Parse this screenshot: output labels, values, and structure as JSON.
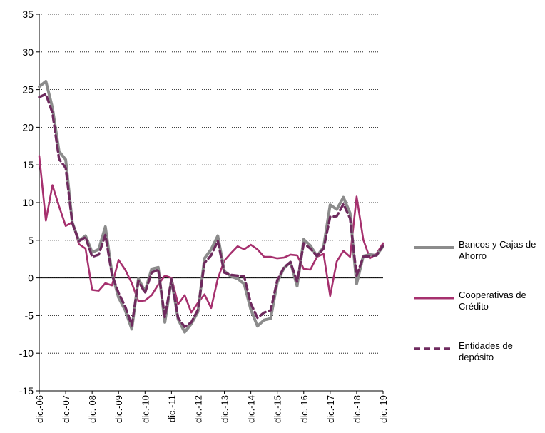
{
  "chart_data": {
    "type": "line",
    "title": "",
    "xlabel": "",
    "ylabel": "",
    "ylim": [
      -15,
      35
    ],
    "yticks": [
      -15,
      -10,
      -5,
      0,
      5,
      10,
      15,
      20,
      25,
      30,
      35
    ],
    "grid": "horizontal dotted",
    "legend_position": "right",
    "x_tick_labels": [
      "dic.-06",
      "dic.-07",
      "dic.-08",
      "dic.-09",
      "dic.-10",
      "dic.-11",
      "dic.-12",
      "dic.-13",
      "dic.-14",
      "dic.-15",
      "dic.-16",
      "dic.-17",
      "dic.-18",
      "dic.-19"
    ],
    "x": [
      "dic.-06",
      "mar.-07",
      "jun.-07",
      "sep.-07",
      "dic.-07",
      "mar.-08",
      "jun.-08",
      "sep.-08",
      "dic.-08",
      "mar.-09",
      "jun.-09",
      "sep.-09",
      "dic.-09",
      "mar.-10",
      "jun.-10",
      "sep.-10",
      "dic.-10",
      "mar.-11",
      "jun.-11",
      "sep.-11",
      "dic.-11",
      "mar.-12",
      "jun.-12",
      "sep.-12",
      "dic.-12",
      "mar.-13",
      "jun.-13",
      "sep.-13",
      "dic.-13",
      "mar.-14",
      "jun.-14",
      "sep.-14",
      "dic.-14",
      "mar.-15",
      "jun.-15",
      "sep.-15",
      "dic.-15",
      "mar.-16",
      "jun.-16",
      "sep.-16",
      "dic.-16",
      "mar.-17",
      "jun.-17",
      "sep.-17",
      "dic.-17",
      "mar.-18",
      "jun.-18",
      "sep.-18",
      "dic.-18",
      "mar.-19",
      "jun.-19",
      "sep.-19",
      "dic.-19"
    ],
    "series": [
      {
        "name": "Bancos y Cajas de Ahorro",
        "color": "#8c8c8c",
        "dash": "solid",
        "values": [
          25.4,
          26.1,
          22.6,
          16.8,
          15.7,
          7.4,
          4.9,
          5.6,
          3.4,
          3.8,
          6.8,
          0.6,
          -2.6,
          -4.3,
          -6.8,
          -0.1,
          -1.8,
          1.2,
          1.4,
          -5.9,
          -0.2,
          -5.5,
          -7.2,
          -6.1,
          -4.5,
          2.6,
          3.8,
          5.6,
          0.9,
          0.2,
          -0.1,
          -0.8,
          -4.2,
          -6.4,
          -5.6,
          -5.4,
          -0.6,
          1.3,
          2.1,
          -1.1,
          5.1,
          4.3,
          2.9,
          4.1,
          9.7,
          9.1,
          10.7,
          8.6,
          -0.8,
          2.9,
          3.1,
          3.0,
          4.2
        ]
      },
      {
        "name": "Cooperativas de Crédito",
        "color": "#a6306e",
        "dash": "solid",
        "values": [
          16.2,
          7.6,
          12.3,
          9.5,
          6.9,
          7.4,
          4.5,
          3.9,
          -1.6,
          -1.7,
          -0.7,
          -1.0,
          2.4,
          1.1,
          -0.7,
          -3.1,
          -3.0,
          -2.3,
          -0.9,
          0.3,
          0.0,
          -3.5,
          -2.3,
          -4.6,
          -3.3,
          -2.2,
          -4.0,
          -0.1,
          2.3,
          3.3,
          4.2,
          3.8,
          4.4,
          3.8,
          2.8,
          2.8,
          2.6,
          2.7,
          3.1,
          3.0,
          1.2,
          1.1,
          2.8,
          3.2,
          -2.4,
          2.2,
          3.6,
          2.8,
          10.8,
          5.1,
          2.6,
          3.2,
          4.6
        ]
      },
      {
        "name": "Entidades de depósito",
        "color": "#6e2a5e",
        "dash": "dashed",
        "values": [
          24.0,
          24.4,
          21.9,
          15.8,
          14.6,
          7.3,
          4.9,
          5.4,
          2.8,
          3.1,
          5.7,
          0.4,
          -2.0,
          -3.8,
          -6.3,
          -0.4,
          -2.0,
          0.7,
          1.1,
          -5.2,
          -0.2,
          -5.3,
          -6.5,
          -5.9,
          -4.2,
          2.0,
          3.0,
          4.9,
          0.7,
          0.4,
          0.3,
          0.2,
          -3.4,
          -5.3,
          -4.6,
          -4.3,
          -0.3,
          1.4,
          2.1,
          -0.5,
          4.6,
          3.9,
          2.9,
          3.9,
          8.1,
          8.2,
          9.8,
          7.9,
          0.3,
          2.8,
          2.9,
          3.0,
          4.3
        ]
      }
    ]
  },
  "legend": {
    "items": [
      {
        "label": "Bancos y Cajas de Ahorro"
      },
      {
        "label": "Cooperativas de Crédito"
      },
      {
        "label": "Entidades de depósito"
      }
    ]
  }
}
